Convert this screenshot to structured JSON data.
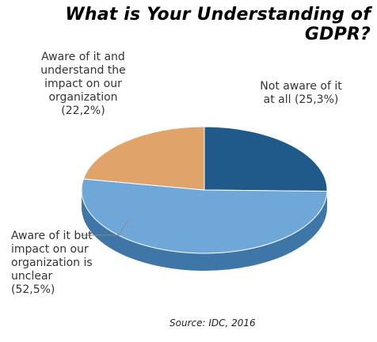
{
  "chart_data": {
    "type": "pie",
    "title": "What is Your Understanding of GDPR?",
    "slices": [
      {
        "label": "Not aware of it at all (25,3%)",
        "value": 25.3,
        "color": "#1f5a8a",
        "side_color": "#14405f"
      },
      {
        "label": "Aware of it but impact on our organization is unclear (52,5%)",
        "value": 52.5,
        "color": "#6fa8d8",
        "side_color": "#3e76a8"
      },
      {
        "label": "Aware of it and understand the impact on our organization (22,2%)",
        "value": 22.2,
        "color": "#e0a46b",
        "side_color": "#b37a45"
      }
    ],
    "legend": "none",
    "data_labels": "outside",
    "source": "Source: IDC, 2016"
  },
  "labels": {
    "dark": "Not aware of it\nat all (25,3%)",
    "blue": "Aware of it but\nimpact on our\norganization is\nunclear\n(52,5%)",
    "orange": "Aware of it and\nunderstand the\nimpact on our\norganization\n(22,2%)"
  }
}
